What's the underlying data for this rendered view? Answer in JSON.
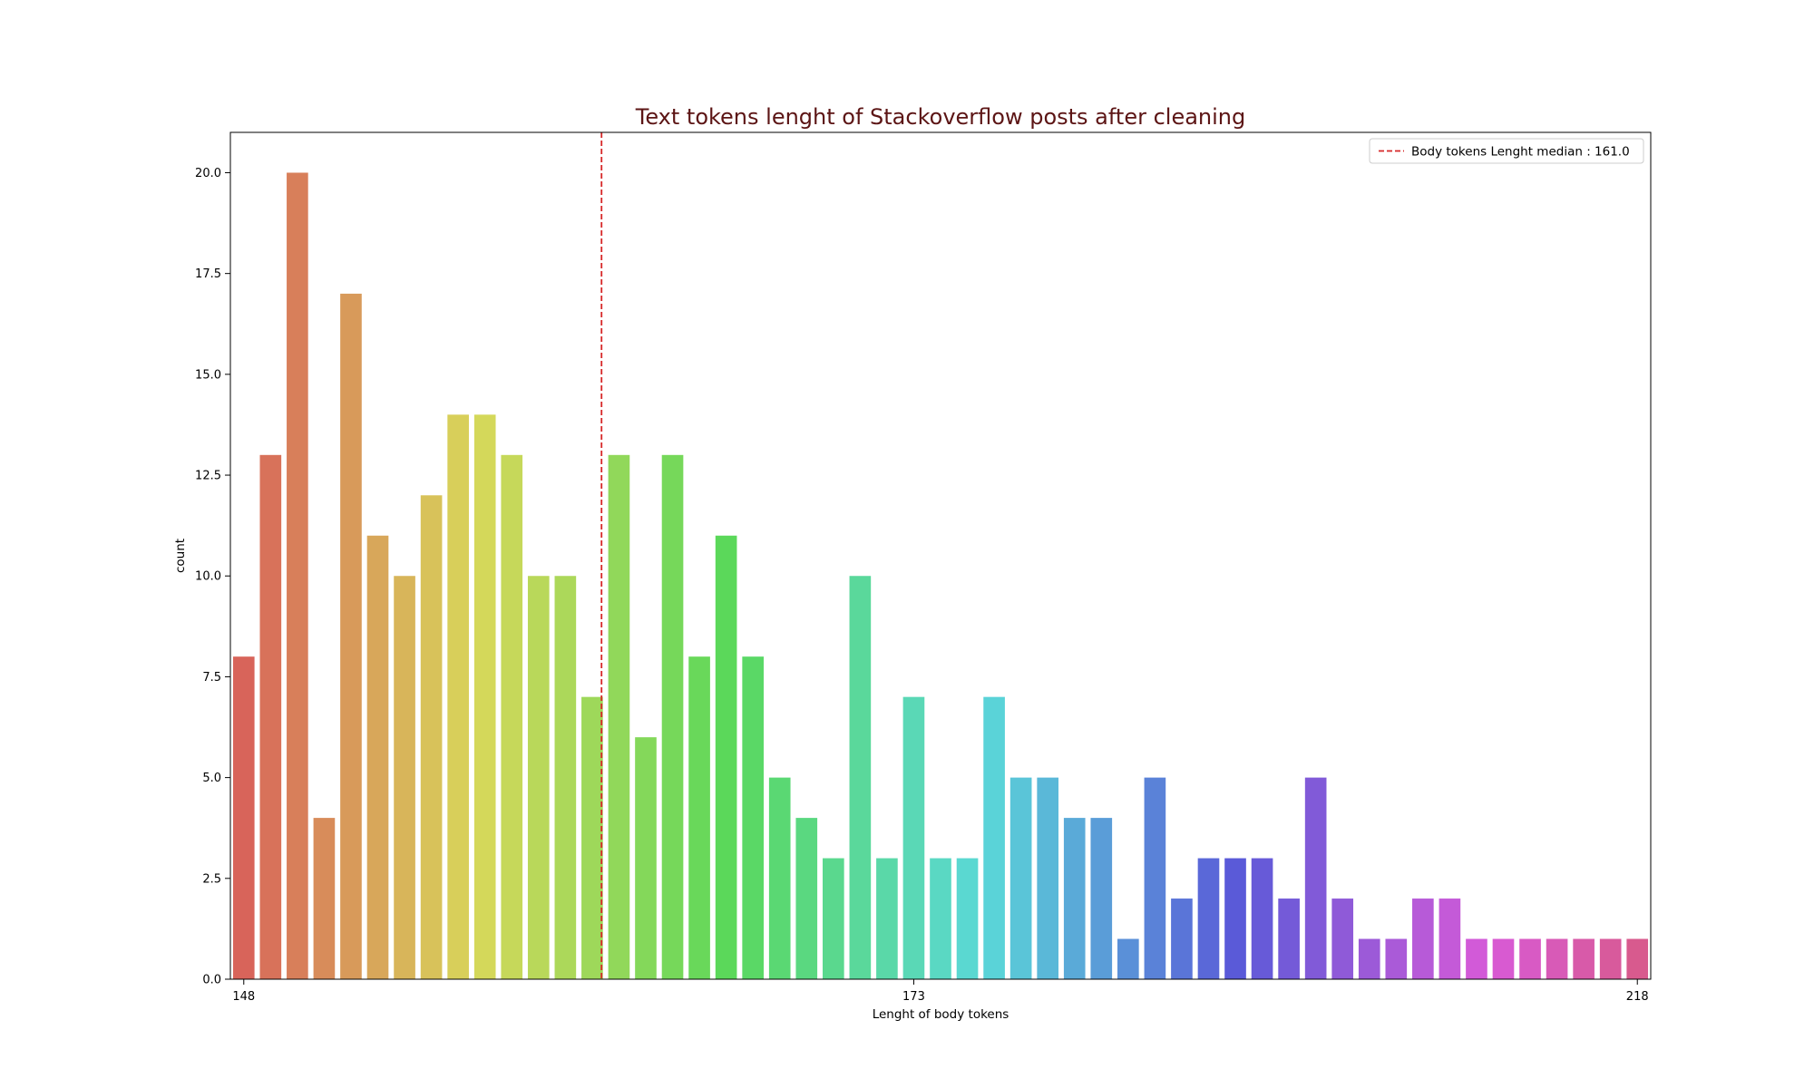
{
  "chart_data": {
    "type": "bar",
    "title": "Text tokens lenght of Stackoverflow posts after cleaning",
    "title_color": "#5c1515",
    "xlabel": "Lenght of body tokens",
    "ylabel": "count",
    "ylim": [
      0,
      21
    ],
    "yticks": [
      "0.0",
      "2.5",
      "5.0",
      "7.5",
      "10.0",
      "12.5",
      "15.0",
      "17.5",
      "20.0"
    ],
    "xticks": [
      {
        "category": 148,
        "label": "148"
      },
      {
        "category": 173,
        "label": "173"
      },
      {
        "category": 218,
        "label": "218"
      }
    ],
    "categories": [
      148,
      149,
      150,
      151,
      152,
      153,
      154,
      155,
      156,
      157,
      158,
      159,
      160,
      161,
      162,
      163,
      164,
      165,
      166,
      167,
      168,
      169,
      170,
      171,
      172,
      173,
      174,
      175,
      176,
      177,
      178,
      179,
      180,
      181,
      182,
      183,
      184,
      185,
      186,
      187,
      188,
      189,
      190,
      191,
      192,
      193,
      194,
      195,
      196,
      197,
      198,
      199,
      218
    ],
    "values": [
      8,
      13,
      20,
      4,
      17,
      11,
      10,
      12,
      14,
      14,
      13,
      10,
      10,
      7,
      13,
      6,
      13,
      8,
      11,
      8,
      5,
      4,
      3,
      10,
      3,
      7,
      3,
      3,
      7,
      5,
      5,
      4,
      4,
      1,
      5,
      2,
      3,
      3,
      3,
      2,
      5,
      2,
      1,
      1,
      2,
      2,
      1,
      1,
      1,
      1,
      1,
      1,
      1
    ],
    "palette": "husl",
    "median_line": {
      "value": 161.0,
      "position_category": 161,
      "position_offset": 0.35,
      "color": "#d62728",
      "style": "dashed"
    },
    "legend": {
      "entries": [
        "Body tokens Lenght median : 161.0"
      ],
      "placement": "top-right"
    },
    "grid": false
  }
}
